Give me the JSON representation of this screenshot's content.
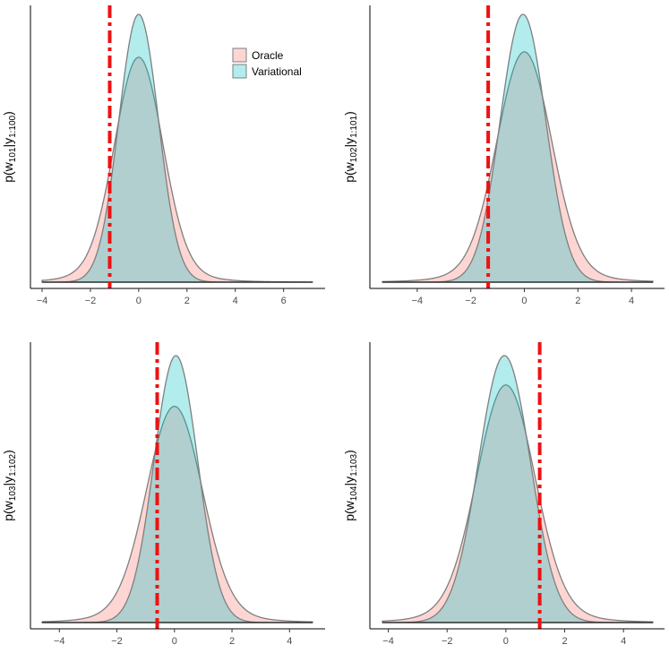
{
  "colors": {
    "oracle_fill": "#f8766d",
    "variational_fill": "#00bfc4",
    "outline": "#7f7f7f",
    "truth_line": "#ee1111",
    "axis": "#000000"
  },
  "legend": {
    "items": [
      {
        "label": "Oracle",
        "color": "#f8766d"
      },
      {
        "label": "Variational",
        "color": "#00bfc4"
      }
    ]
  },
  "chart_data": [
    {
      "type": "area",
      "ylabel": {
        "p": "p(w",
        "w_sub": "101",
        "mid": "|y",
        "y_sub": "1:100",
        "end": ")"
      },
      "xlim": [
        -4.0,
        7.2
      ],
      "xticks": [
        -4,
        -2,
        0,
        2,
        4,
        6
      ],
      "xtick_labels": [
        "−4",
        "−2",
        "0",
        "2",
        "4",
        "6"
      ],
      "truth_x": -1.2,
      "series": [
        {
          "name": "Oracle",
          "mean": 0.0,
          "sd": 0.98,
          "peak": 0.84,
          "tail": 1.3
        },
        {
          "name": "Variational",
          "mean": 0.0,
          "sd": 0.82,
          "peak": 1.0,
          "tail": 0
        }
      ],
      "legend": true
    },
    {
      "type": "area",
      "ylabel": {
        "p": "p(w",
        "w_sub": "102",
        "mid": "|y",
        "y_sub": "1:101",
        "end": ")"
      },
      "xlim": [
        -5.3,
        4.8
      ],
      "xticks": [
        -4,
        -2,
        0,
        2,
        4
      ],
      "xtick_labels": [
        "−4",
        "−2",
        "0",
        "2",
        "4"
      ],
      "truth_x": -1.35,
      "series": [
        {
          "name": "Oracle",
          "mean": 0.0,
          "sd": 1.0,
          "peak": 0.86,
          "tail": 1.3
        },
        {
          "name": "Variational",
          "mean": -0.05,
          "sd": 0.85,
          "peak": 1.0,
          "tail": 0
        }
      ],
      "legend": false
    },
    {
      "type": "area",
      "ylabel": {
        "p": "p(w",
        "w_sub": "103",
        "mid": "|y",
        "y_sub": "1:102",
        "end": ")"
      },
      "xlim": [
        -4.6,
        4.8
      ],
      "xticks": [
        -4,
        -2,
        0,
        2,
        4
      ],
      "xtick_labels": [
        "−4",
        "−2",
        "0",
        "2",
        "4"
      ],
      "truth_x": -0.6,
      "series": [
        {
          "name": "Oracle",
          "mean": 0.0,
          "sd": 0.95,
          "peak": 0.81,
          "tail": 1.3
        },
        {
          "name": "Variational",
          "mean": 0.05,
          "sd": 0.76,
          "peak": 1.0,
          "tail": 0
        }
      ],
      "legend": false
    },
    {
      "type": "area",
      "ylabel": {
        "p": "p(w",
        "w_sub": "104",
        "mid": "|y",
        "y_sub": "1:103",
        "end": ")"
      },
      "xlim": [
        -4.2,
        5.0
      ],
      "xticks": [
        -4,
        -2,
        0,
        2,
        4
      ],
      "xtick_labels": [
        "−4",
        "−2",
        "0",
        "2",
        "4"
      ],
      "truth_x": 1.15,
      "series": [
        {
          "name": "Oracle",
          "mean": 0.0,
          "sd": 0.97,
          "peak": 0.89,
          "tail": 1.3
        },
        {
          "name": "Variational",
          "mean": -0.05,
          "sd": 0.88,
          "peak": 1.0,
          "tail": 0
        }
      ],
      "legend": false
    }
  ]
}
